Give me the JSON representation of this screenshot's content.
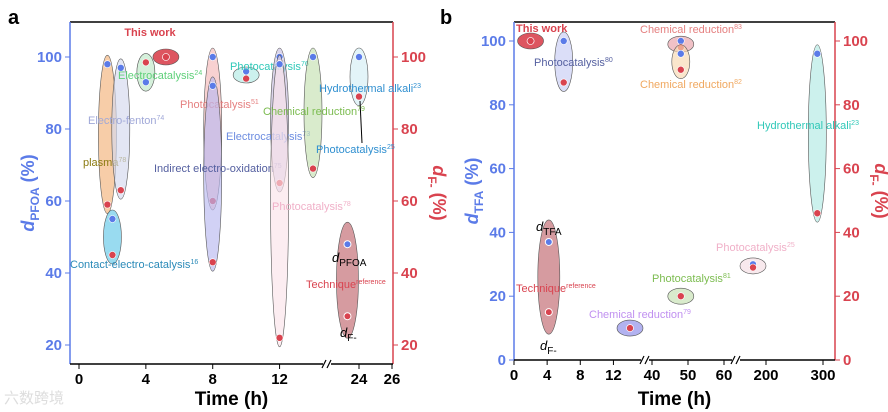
{
  "colors": {
    "left_axis": "#5b7be8",
    "right_axis": "#d9434f",
    "frame": "#000000"
  },
  "watermark": "六数跨境",
  "chart_data": [
    {
      "panel": "a",
      "type": "scatter",
      "xlabel": "Time (h)",
      "ylabel_left": {
        "main": "d",
        "sub": "PFOA",
        "unit": " (%)"
      },
      "ylabel_right": {
        "main": "d",
        "sub": "F-",
        "unit": " (%)"
      },
      "xticks": [
        0,
        4,
        8,
        12,
        24,
        26
      ],
      "x_break": [
        14,
        22
      ],
      "ylim": [
        15,
        110
      ],
      "yticks_left": [
        20,
        40,
        60,
        80,
        100
      ],
      "yticks_right": [
        20,
        40,
        60,
        80,
        100
      ],
      "series": [
        {
          "name": "This work",
          "ref": "",
          "t": 5.2,
          "d_target": 100,
          "d_F": 100,
          "color": "#d9434f",
          "label_color": "#d9434f"
        },
        {
          "name": "plasma",
          "ref": "78",
          "t": 1.7,
          "d_target": 98,
          "d_F": 59,
          "color": "#f2b27a",
          "label_color": "#8a7a10"
        },
        {
          "name": "Electro-fenton",
          "ref": "74",
          "t": 2.5,
          "d_target": 97,
          "d_F": 63,
          "color": "#d4d9ee",
          "label_color": "#a0a8d8"
        },
        {
          "name": "Electrocatalysis",
          "ref": "24",
          "t": 4.0,
          "d_target": 93,
          "d_F": 98.5,
          "color": "#bfe8c8",
          "label_color": "#5fd07a"
        },
        {
          "name": "Contact-electro-catalysis",
          "ref": "16",
          "t": 2.0,
          "d_target": 55,
          "d_F": 45,
          "color": "#62c8e8",
          "label_color": "#2a8ab8"
        },
        {
          "name": "Photocatalysis",
          "ref": "51",
          "t": 8.0,
          "d_target": 100,
          "d_F": 60,
          "color": "#f4b8b8",
          "label_color": "#e58080"
        },
        {
          "name": "Indirect electro-oxidation",
          "ref": "75",
          "t": 8.0,
          "d_target": 92,
          "d_F": 43,
          "color": "#b8b8f0",
          "label_color": "#5560a0"
        },
        {
          "name": "Photocatalysis",
          "ref": "76",
          "t": 10.0,
          "d_target": 96,
          "d_F": 94,
          "color": "#b0eae4",
          "label_color": "#30c8b8"
        },
        {
          "name": "Electrocatalysis",
          "ref": "73",
          "t": 12.0,
          "d_target": 100,
          "d_F": 65,
          "color": "#c8bfe0",
          "label_color": "#6c8ce0"
        },
        {
          "name": "Photocatalysis",
          "ref": "78",
          "t": 12.0,
          "d_target": 98,
          "d_F": 22,
          "color": "#fbe4ea",
          "label_color": "#f0b0c8"
        },
        {
          "name": "Chemical reduction",
          "ref": "79",
          "t": 14.0,
          "d_target": 100,
          "d_F": 69,
          "color": "#c4e0b0",
          "label_color": "#7cbc50"
        },
        {
          "name": "Hydrothermal alkali",
          "ref": "23",
          "t": 24.0,
          "d_target": 100,
          "d_F": 89,
          "color": "#d4eef4",
          "label_color": "#2f8fd0"
        },
        {
          "name": "Photocatalysis",
          "ref": "25",
          "t": 24.0,
          "d_target": null,
          "d_F": null,
          "color": "",
          "label_color": "#2f8fd0"
        }
      ],
      "legend": {
        "t": 23.3,
        "d_target": 48,
        "d_F": 28,
        "target_label": {
          "main": "d",
          "sub": "PFOA"
        },
        "f_label": {
          "main": "d",
          "sub": "F-"
        },
        "technique": "Technique",
        "reference": "reference"
      }
    },
    {
      "panel": "b",
      "type": "scatter",
      "xlabel": "Time (h)",
      "ylabel_left": {
        "main": "d",
        "sub": "TFA",
        "unit": " (%)"
      },
      "ylabel_right": {
        "main": "d",
        "sub": "F-",
        "unit": " (%)"
      },
      "xticks": [
        0,
        4,
        8,
        12,
        40,
        50,
        60,
        200,
        300
      ],
      "x_break": [
        [
          14,
          38
        ],
        [
          62,
          150
        ]
      ],
      "ylim": [
        0,
        106
      ],
      "yticks_left": [
        0,
        20,
        40,
        60,
        80,
        100
      ],
      "yticks_right": [
        0,
        20,
        40,
        60,
        80,
        100
      ],
      "series": [
        {
          "name": "This work",
          "ref": "",
          "t": 2,
          "d_target": 100,
          "d_F": 100,
          "color": "#d9434f",
          "label_color": "#d9434f"
        },
        {
          "name": "Photocatalysis",
          "ref": "80",
          "t": 6,
          "d_target": 100,
          "d_F": 87,
          "color": "#c8cdf4",
          "label_color": "#5560a0"
        },
        {
          "name": "Chemical reduction",
          "ref": "83",
          "t": 48,
          "d_target": 100,
          "d_F": 98,
          "color": "#e8a0a8",
          "label_color": "#e58080"
        },
        {
          "name": "Chemical reduction",
          "ref": "82",
          "t": 48,
          "d_target": 96,
          "d_F": 91,
          "color": "#f8d8b0",
          "label_color": "#f0a860"
        },
        {
          "name": "Hydrothermal alkali",
          "ref": "23",
          "t": 290,
          "d_target": 96,
          "d_F": 46,
          "color": "#b0eae4",
          "label_color": "#30c8b8"
        },
        {
          "name": "Photocatalysis",
          "ref": "25",
          "t": 175,
          "d_target": 30,
          "d_F": 29,
          "color": "#f4dde4",
          "label_color": "#f0b0c8"
        },
        {
          "name": "Photocatalysis",
          "ref": "81",
          "t": 48,
          "d_target": 20,
          "d_F": 20,
          "color": "#c4e0b0",
          "label_color": "#7cbc50"
        },
        {
          "name": "Chemical reduction",
          "ref": "79",
          "t": 14,
          "d_target": 10,
          "d_F": 10,
          "color": "#8888e8",
          "label_color": "#c090f0"
        }
      ],
      "legend": {
        "t": 4.2,
        "d_target": 37,
        "d_F": 15,
        "target_label": {
          "main": "d",
          "sub": "TFA"
        },
        "f_label": {
          "main": "d",
          "sub": "F-"
        },
        "technique": "Technique",
        "reference": "reference"
      }
    }
  ]
}
